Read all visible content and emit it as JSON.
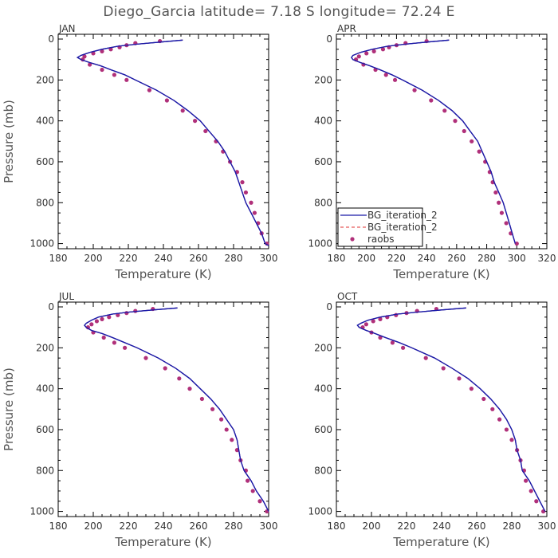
{
  "title": "Diego_Garcia   latitude= 7.18 S longitude= 72.24 E",
  "colors": {
    "model": "#1a1aa8",
    "model2": "#e03030",
    "obs": "#b0307a",
    "axis": "#000000"
  },
  "legend": {
    "entries": [
      {
        "label": "BG_iteration_2",
        "style": "solid"
      },
      {
        "label": "BG_iteration_2",
        "style": "dashed"
      },
      {
        "label": "raobs",
        "style": "dot"
      }
    ]
  },
  "chart_data": [
    {
      "type": "line",
      "panel_label": "JAN",
      "xlabel": "Temperature (K)",
      "ylabel": "Pressure (mb)",
      "xlim": [
        180,
        300
      ],
      "ylim": [
        0,
        1025
      ],
      "xticks": [
        "180",
        "200",
        "220",
        "240",
        "260",
        "280",
        "300"
      ],
      "yticks": [
        "0",
        "200",
        "400",
        "600",
        "800",
        "1000"
      ],
      "series": [
        {
          "name": "BG_iteration_2",
          "style": "solid",
          "p": [
            5,
            15,
            25,
            35,
            50,
            65,
            80,
            90,
            100,
            115,
            130,
            150,
            175,
            200,
            250,
            300,
            350,
            400,
            450,
            500,
            550,
            600,
            650,
            700,
            750,
            800,
            850,
            900,
            950,
            1000,
            1010
          ],
          "t": [
            251,
            238,
            225,
            214,
            205,
            198,
            193,
            191,
            193,
            198,
            204,
            210,
            218,
            224,
            236,
            246,
            254,
            261,
            266,
            271,
            275,
            278,
            281,
            283,
            285,
            287,
            290,
            293,
            296,
            298,
            300
          ]
        },
        {
          "name": "BG_iteration_2",
          "style": "dashed",
          "p": [
            5,
            15,
            25,
            35,
            50,
            65,
            80,
            90,
            100,
            115,
            130,
            150,
            175,
            200,
            250,
            300,
            350,
            400,
            450,
            500,
            550,
            600,
            650,
            700,
            750,
            800,
            850,
            900,
            950,
            1000,
            1010
          ],
          "t": [
            251,
            238,
            225,
            214,
            205,
            198,
            193,
            191,
            193,
            198,
            204,
            210,
            218,
            224,
            236,
            246,
            254,
            261,
            266,
            271,
            275,
            278,
            281,
            283,
            285,
            287,
            290,
            293,
            296,
            298,
            300
          ]
        },
        {
          "name": "raobs",
          "style": "dot",
          "p": [
            10,
            20,
            30,
            40,
            50,
            60,
            70,
            85,
            100,
            125,
            150,
            175,
            200,
            250,
            300,
            350,
            400,
            450,
            500,
            550,
            600,
            650,
            700,
            750,
            800,
            850,
            900,
            950,
            1000
          ],
          "t": [
            238,
            224,
            219,
            215,
            210,
            205,
            200,
            195,
            194,
            198,
            205,
            212,
            219,
            232,
            242,
            251,
            258,
            264,
            270,
            274,
            278,
            282,
            285,
            287,
            290,
            292,
            294,
            296,
            299
          ]
        }
      ]
    },
    {
      "type": "line",
      "panel_label": "APR",
      "xlabel": "Temperature (K)",
      "ylabel": "Pressure (mb)",
      "xlim": [
        180,
        320
      ],
      "ylim": [
        0,
        1025
      ],
      "xticks": [
        "180",
        "200",
        "220",
        "240",
        "260",
        "280",
        "300",
        "320"
      ],
      "yticks": [
        "0",
        "200",
        "400",
        "600",
        "800",
        "1000"
      ],
      "series": [
        {
          "name": "BG_iteration_2",
          "style": "solid",
          "p": [
            5,
            15,
            25,
            35,
            50,
            65,
            80,
            90,
            100,
            115,
            130,
            150,
            175,
            200,
            250,
            300,
            350,
            400,
            450,
            500,
            550,
            600,
            650,
            700,
            750,
            800,
            850,
            900,
            950,
            1000
          ],
          "t": [
            255,
            240,
            226,
            214,
            204,
            196,
            191,
            190,
            191,
            196,
            202,
            209,
            217,
            224,
            237,
            248,
            257,
            264,
            269,
            274,
            277,
            280,
            283,
            285,
            288,
            291,
            293,
            295,
            297,
            299
          ]
        },
        {
          "name": "BG_iteration_2",
          "style": "dashed",
          "p": [
            5,
            15,
            25,
            35,
            50,
            65,
            80,
            90,
            100,
            115,
            130,
            150,
            175,
            200,
            250,
            300,
            350,
            400,
            450,
            500,
            550,
            600,
            650,
            700,
            750,
            800,
            850,
            900,
            950,
            1000
          ],
          "t": [
            255,
            240,
            226,
            214,
            204,
            196,
            191,
            190,
            191,
            196,
            202,
            209,
            217,
            224,
            237,
            248,
            257,
            264,
            269,
            274,
            277,
            280,
            283,
            285,
            288,
            291,
            293,
            295,
            297,
            299
          ]
        },
        {
          "name": "raobs",
          "style": "dot",
          "p": [
            10,
            20,
            30,
            40,
            50,
            60,
            70,
            85,
            100,
            125,
            150,
            175,
            200,
            250,
            300,
            350,
            400,
            450,
            500,
            550,
            600,
            650,
            700,
            750,
            800,
            850,
            900,
            950,
            1000
          ],
          "t": [
            240,
            226,
            220,
            215,
            211,
            205,
            200,
            195,
            193,
            198,
            206,
            213,
            219,
            232,
            243,
            252,
            259,
            265,
            270,
            275,
            279,
            282,
            284,
            286,
            288,
            290,
            293,
            296,
            300
          ]
        }
      ]
    },
    {
      "type": "line",
      "panel_label": "JUL",
      "xlabel": "Temperature (K)",
      "ylabel": "Pressure (mb)",
      "xlim": [
        180,
        300
      ],
      "ylim": [
        0,
        1025
      ],
      "xticks": [
        "180",
        "200",
        "220",
        "240",
        "260",
        "280",
        "300"
      ],
      "yticks": [
        "0",
        "200",
        "400",
        "600",
        "800",
        "1000"
      ],
      "series": [
        {
          "name": "BG_iteration_2",
          "style": "solid",
          "p": [
            5,
            15,
            25,
            35,
            50,
            65,
            80,
            90,
            100,
            115,
            130,
            150,
            175,
            200,
            250,
            300,
            350,
            400,
            450,
            500,
            550,
            600,
            650,
            700,
            750,
            800,
            850,
            900,
            950,
            1000
          ],
          "t": [
            248,
            234,
            221,
            211,
            203,
            199,
            196,
            195,
            196,
            199,
            205,
            211,
            218,
            225,
            237,
            247,
            255,
            261,
            267,
            272,
            276,
            280,
            282,
            283,
            284,
            286,
            290,
            293,
            297,
            300
          ]
        },
        {
          "name": "BG_iteration_2",
          "style": "dashed",
          "p": [
            5,
            15,
            25,
            35,
            50,
            65,
            80,
            90,
            100,
            115,
            130,
            150,
            175,
            200,
            250,
            300,
            350,
            400,
            450,
            500,
            550,
            600,
            650,
            700,
            750,
            800,
            850,
            900,
            950,
            1000
          ],
          "t": [
            248,
            234,
            221,
            211,
            203,
            199,
            196,
            195,
            196,
            199,
            205,
            211,
            218,
            225,
            237,
            247,
            255,
            261,
            267,
            272,
            276,
            280,
            282,
            283,
            284,
            286,
            290,
            293,
            297,
            300
          ]
        },
        {
          "name": "raobs",
          "style": "dot",
          "p": [
            10,
            20,
            30,
            40,
            50,
            60,
            70,
            85,
            100,
            125,
            150,
            175,
            200,
            250,
            300,
            350,
            400,
            450,
            500,
            550,
            600,
            650,
            700,
            750,
            800,
            850,
            900,
            950,
            1000
          ],
          "t": [
            234,
            224,
            219,
            214,
            209,
            205,
            202,
            199,
            197,
            200,
            206,
            212,
            218,
            230,
            241,
            249,
            255,
            262,
            268,
            273,
            276,
            279,
            282,
            284,
            287,
            288,
            291,
            295,
            299
          ]
        }
      ]
    },
    {
      "type": "line",
      "panel_label": "OCT",
      "xlabel": "Temperature (K)",
      "ylabel": "Pressure (mb)",
      "xlim": [
        180,
        300
      ],
      "ylim": [
        0,
        1025
      ],
      "xticks": [
        "180",
        "200",
        "220",
        "240",
        "260",
        "280",
        "300"
      ],
      "yticks": [
        "0",
        "200",
        "400",
        "600",
        "800",
        "1000"
      ],
      "series": [
        {
          "name": "BG_iteration_2",
          "style": "solid",
          "p": [
            5,
            15,
            25,
            35,
            50,
            65,
            80,
            90,
            100,
            115,
            130,
            150,
            175,
            200,
            250,
            300,
            350,
            400,
            450,
            500,
            550,
            600,
            650,
            700,
            750,
            800,
            850,
            900,
            950,
            1000
          ],
          "t": [
            254,
            240,
            227,
            215,
            205,
            198,
            194,
            192,
            193,
            197,
            202,
            208,
            216,
            223,
            236,
            246,
            255,
            262,
            268,
            273,
            277,
            280,
            282,
            283,
            285,
            286,
            290,
            293,
            296,
            299
          ]
        },
        {
          "name": "BG_iteration_2",
          "style": "dashed",
          "p": [
            5,
            15,
            25,
            35,
            50,
            65,
            80,
            90,
            100,
            115,
            130,
            150,
            175,
            200,
            250,
            300,
            350,
            400,
            450,
            500,
            550,
            600,
            650,
            700,
            750,
            800,
            850,
            900,
            950,
            1000
          ],
          "t": [
            254,
            240,
            227,
            215,
            205,
            198,
            194,
            192,
            193,
            197,
            202,
            208,
            216,
            223,
            236,
            246,
            255,
            262,
            268,
            273,
            277,
            280,
            282,
            283,
            285,
            286,
            290,
            293,
            296,
            299
          ]
        },
        {
          "name": "raobs",
          "style": "dot",
          "p": [
            10,
            20,
            30,
            40,
            50,
            60,
            70,
            85,
            100,
            125,
            150,
            175,
            200,
            250,
            300,
            350,
            400,
            450,
            500,
            550,
            600,
            650,
            700,
            750,
            800,
            850,
            900,
            950,
            1000
          ],
          "t": [
            237,
            226,
            220,
            214,
            209,
            205,
            201,
            197,
            195,
            200,
            205,
            212,
            218,
            231,
            241,
            250,
            257,
            264,
            269,
            273,
            277,
            280,
            283,
            285,
            287,
            288,
            291,
            294,
            298
          ]
        }
      ]
    }
  ]
}
